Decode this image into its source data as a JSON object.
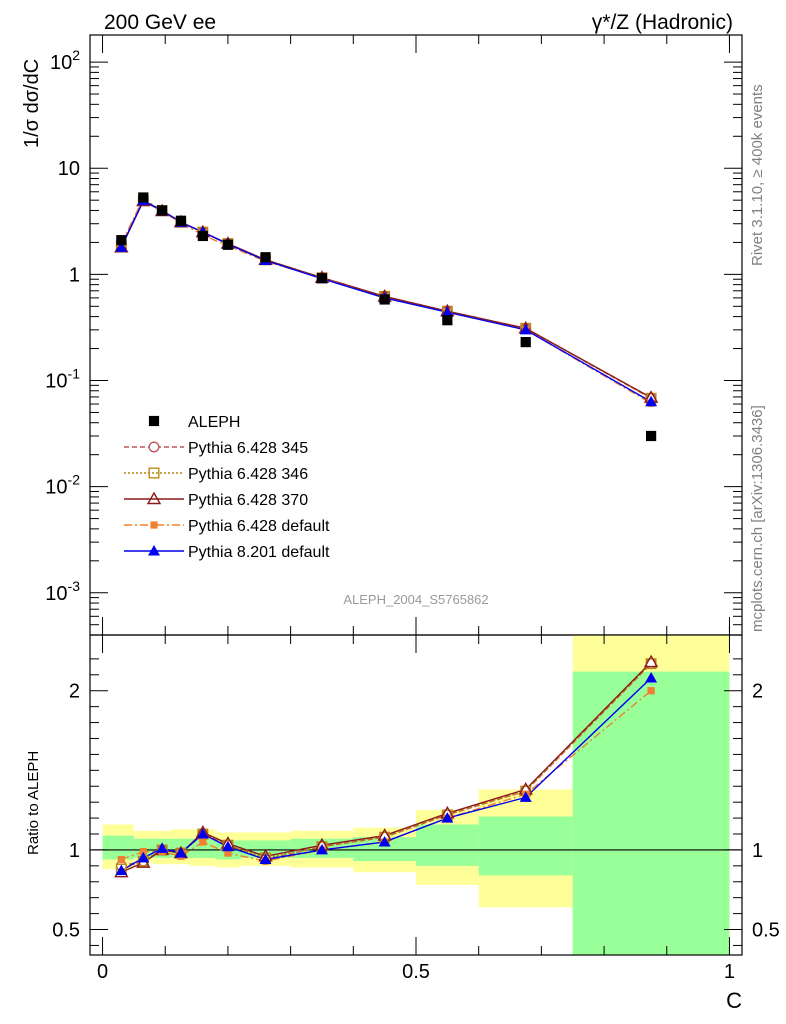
{
  "header": {
    "left_title": "200 GeV ee",
    "right_title": "γ*/Z (Hadronic)"
  },
  "side_labels": {
    "rivet": "Rivet 3.1.10, ≥ 400k events",
    "mcplots": "mcplots.cern.ch [arXiv:1306.3436]"
  },
  "watermark": "ALEPH_2004_S5765862",
  "chart_data": [
    {
      "type": "line",
      "scale": "log",
      "ylabel": "1/σ  dσ/dC",
      "ylim": [
        0.0004,
        180
      ],
      "xlim": [
        -0.02,
        1.02
      ],
      "y_tick_labels": [
        "10^-3",
        "10^-2",
        "10^-1",
        "1",
        "10",
        "10^2"
      ],
      "x": [
        0.03,
        0.065,
        0.095,
        0.125,
        0.16,
        0.2,
        0.26,
        0.35,
        0.45,
        0.55,
        0.675,
        0.875
      ],
      "reference": {
        "name": "ALEPH",
        "color": "#000000",
        "values": [
          2.1,
          5.3,
          4.0,
          3.2,
          2.3,
          1.9,
          1.45,
          0.92,
          0.58,
          0.37,
          0.23,
          0.03
        ]
      },
      "series": [
        {
          "name": "Pythia 6.428 345",
          "color": "#c0555a",
          "marker": "open-circle",
          "dash": "5,3",
          "values": [
            1.9,
            4.95,
            4.0,
            3.1,
            2.5,
            1.95,
            1.37,
            0.93,
            0.62,
            0.45,
            0.31,
            0.068
          ]
        },
        {
          "name": "Pythia 6.428 346",
          "color": "#b8860b",
          "marker": "open-square",
          "dash": "2,2",
          "values": [
            1.85,
            4.95,
            4.0,
            3.1,
            2.5,
            1.95,
            1.37,
            0.93,
            0.62,
            0.45,
            0.31,
            0.068
          ]
        },
        {
          "name": "Pythia 6.428 370",
          "color": "#8b1a1a",
          "marker": "open-triangle",
          "dash": "",
          "values": [
            1.8,
            4.9,
            3.95,
            3.1,
            2.5,
            1.95,
            1.37,
            0.93,
            0.62,
            0.45,
            0.31,
            0.069
          ]
        },
        {
          "name": "Pythia 6.428 default",
          "color": "#f08030",
          "marker": "filled-square",
          "dash": "8,3,2,3",
          "values": [
            1.95,
            5.2,
            3.95,
            3.05,
            2.35,
            1.85,
            1.33,
            0.92,
            0.6,
            0.44,
            0.3,
            0.061
          ]
        },
        {
          "name": "Pythia 8.201 default",
          "color": "#0000ee",
          "marker": "filled-triangle",
          "dash": "",
          "values": [
            1.8,
            4.95,
            4.0,
            3.1,
            2.5,
            1.93,
            1.35,
            0.91,
            0.6,
            0.44,
            0.3,
            0.063
          ]
        }
      ]
    },
    {
      "type": "line",
      "ylabel": "Ratio to ALEPH",
      "xlabel": "C",
      "ylim": [
        0.34,
        2.35
      ],
      "y_ticks": [
        0.5,
        1,
        2
      ],
      "y_tick_labels": [
        "0.5",
        "1",
        "2"
      ],
      "x_ticks": [
        0,
        0.5,
        1
      ],
      "x_tick_labels": [
        "0",
        "0.5",
        "1"
      ],
      "x": [
        0.03,
        0.065,
        0.095,
        0.125,
        0.16,
        0.2,
        0.26,
        0.35,
        0.45,
        0.55,
        0.675,
        0.875
      ],
      "bands": {
        "edges": [
          0,
          0.05,
          0.08,
          0.11,
          0.14,
          0.18,
          0.22,
          0.3,
          0.4,
          0.5,
          0.6,
          0.75,
          1.0
        ],
        "yellow": [
          [
            0.88,
            1.16
          ],
          [
            0.92,
            1.12
          ],
          [
            0.91,
            1.12
          ],
          [
            0.91,
            1.13
          ],
          [
            0.9,
            1.13
          ],
          [
            0.89,
            1.11
          ],
          [
            0.9,
            1.11
          ],
          [
            0.89,
            1.12
          ],
          [
            0.86,
            1.14
          ],
          [
            0.78,
            1.25
          ],
          [
            0.64,
            1.38
          ],
          [
            0.34,
            2.35
          ]
        ],
        "green": [
          [
            0.94,
            1.09
          ],
          [
            0.95,
            1.07
          ],
          [
            0.95,
            1.07
          ],
          [
            0.95,
            1.07
          ],
          [
            0.95,
            1.07
          ],
          [
            0.94,
            1.06
          ],
          [
            0.95,
            1.06
          ],
          [
            0.95,
            1.07
          ],
          [
            0.93,
            1.08
          ],
          [
            0.9,
            1.16
          ],
          [
            0.84,
            1.21
          ],
          [
            0.34,
            2.12
          ]
        ]
      },
      "series": [
        {
          "name": "Pythia 6.428 345",
          "color": "#c0555a",
          "marker": "open-circle",
          "dash": "5,3",
          "values": [
            0.9,
            0.93,
            1.0,
            0.98,
            1.1,
            1.03,
            0.94,
            1.02,
            1.08,
            1.22,
            1.37,
            2.17
          ]
        },
        {
          "name": "Pythia 6.428 346",
          "color": "#b8860b",
          "marker": "open-square",
          "dash": "2,2",
          "values": [
            0.88,
            0.93,
            1.0,
            0.98,
            1.1,
            1.03,
            0.95,
            1.02,
            1.08,
            1.22,
            1.37,
            2.17
          ]
        },
        {
          "name": "Pythia 6.428 370",
          "color": "#8b1a1a",
          "marker": "open-triangle",
          "dash": "",
          "values": [
            0.86,
            0.92,
            1.0,
            0.98,
            1.11,
            1.04,
            0.96,
            1.03,
            1.09,
            1.23,
            1.38,
            2.18
          ]
        },
        {
          "name": "Pythia 6.428 default",
          "color": "#f08030",
          "marker": "filled-square",
          "dash": "8,3,2,3",
          "values": [
            0.94,
            0.99,
            0.99,
            0.96,
            1.05,
            0.98,
            0.93,
            1.0,
            1.05,
            1.2,
            1.35,
            2.0
          ]
        },
        {
          "name": "Pythia 8.201 default",
          "color": "#0000ee",
          "marker": "filled-triangle",
          "dash": "",
          "values": [
            0.87,
            0.95,
            1.01,
            0.98,
            1.1,
            1.02,
            0.94,
            1.0,
            1.05,
            1.2,
            1.33,
            2.08
          ]
        }
      ]
    }
  ]
}
